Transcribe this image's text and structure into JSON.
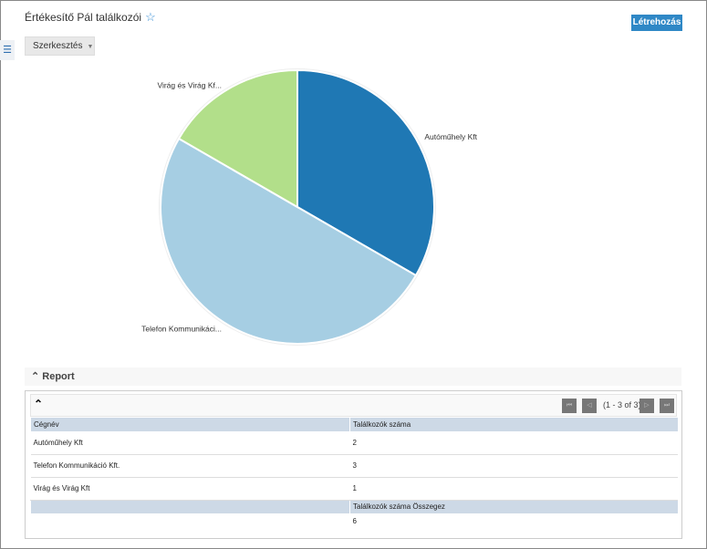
{
  "header": {
    "title": "Értékesítő Pál találkozói",
    "create_label": "Létrehozás",
    "edit_label": "Szerkesztés"
  },
  "chart_data": {
    "type": "pie",
    "categories": [
      "Autóműhely Kft",
      "Telefon Kommunikáci...",
      "Virág és Virág Kf..."
    ],
    "values": [
      2,
      3,
      1
    ],
    "colors": [
      "#1f78b4",
      "#a6cee3",
      "#b2df8a"
    ]
  },
  "report": {
    "title": "Report",
    "pagination": "(1 - 3 of 3)",
    "columns": [
      "Cégnév",
      "Találkozók száma"
    ],
    "rows": [
      [
        "Autóműhely Kft",
        "2"
      ],
      [
        "Telefon Kommunikáció Kft.",
        "3"
      ],
      [
        "Virág és Virág Kft",
        "1"
      ]
    ],
    "summary_label": "Találkozók száma Összegez",
    "summary_value": "6"
  }
}
